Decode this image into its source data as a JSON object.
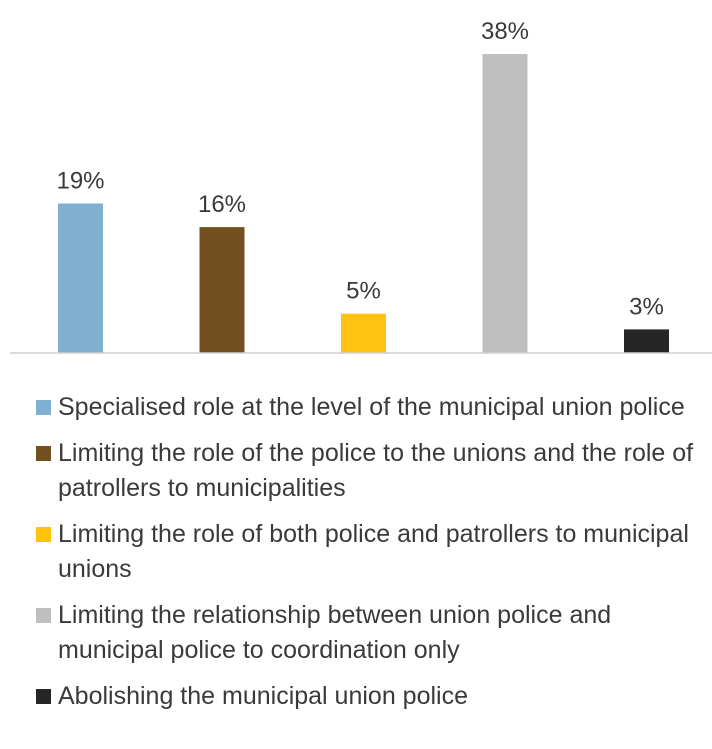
{
  "chart_data": {
    "type": "bar",
    "title": "",
    "xlabel": "",
    "ylabel": "",
    "ylim": [
      0,
      38
    ],
    "grid": false,
    "legend_position": "bottom",
    "value_suffix": "%",
    "categories": [
      "Specialised role at the level of the municipal union police",
      "Limiting the role of the police to the unions and the role of patrollers to municipalities",
      "Limiting the role of both police and patrollers to municipal unions",
      "Limiting the relationship between union police and municipal police to coordination only",
      "Abolishing the municipal union police"
    ],
    "values": [
      19,
      16,
      5,
      38,
      3
    ],
    "data_labels": [
      "19%",
      "16%",
      "5%",
      "38%",
      "3%"
    ],
    "colors": [
      "#7fb0d0",
      "#73501f",
      "#ffc20e",
      "#bfbfbf",
      "#262626"
    ]
  }
}
